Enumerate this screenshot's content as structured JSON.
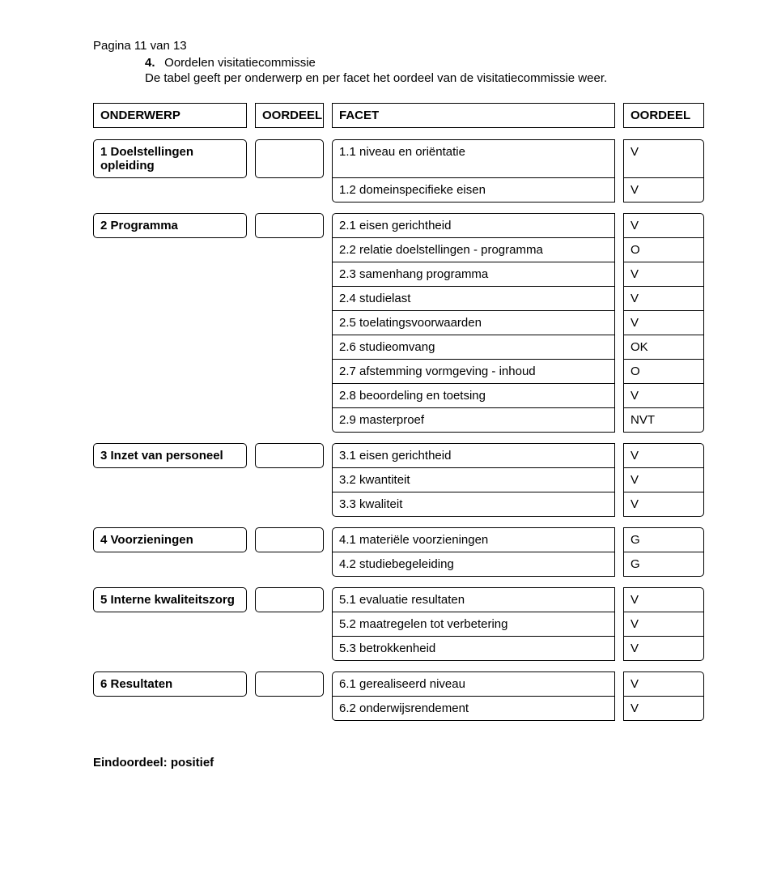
{
  "page_number_label": "Pagina 11 van 13",
  "section_number": "4.",
  "section_title": "Oordelen visitatiecommissie",
  "intro_text": "De tabel geeft per onderwerp en per facet het oordeel van de visitatiecommissie weer.",
  "header": {
    "onderwerp": "ONDERWERP",
    "oordeel_left": "OORDEEL",
    "facet": "FACET",
    "oordeel_right": "OORDEEL"
  },
  "groups": [
    {
      "subject": "1 Doelstellingen opleiding",
      "rows": [
        {
          "facet": "1.1 niveau en oriëntatie",
          "oordeel": "V"
        },
        {
          "facet": "1.2 domeinspecifieke eisen",
          "oordeel": "V"
        }
      ]
    },
    {
      "subject": "2 Programma",
      "rows": [
        {
          "facet": "2.1 eisen gerichtheid",
          "oordeel": "V"
        },
        {
          "facet": "2.2 relatie doelstellingen - programma",
          "oordeel": "O"
        },
        {
          "facet": "2.3 samenhang programma",
          "oordeel": "V"
        },
        {
          "facet": "2.4 studielast",
          "oordeel": "V"
        },
        {
          "facet": "2.5 toelatingsvoorwaarden",
          "oordeel": "V"
        },
        {
          "facet": "2.6 studieomvang",
          "oordeel": "OK"
        },
        {
          "facet": "2.7 afstemming vormgeving - inhoud",
          "oordeel": "O"
        },
        {
          "facet": "2.8 beoordeling en toetsing",
          "oordeel": "V"
        },
        {
          "facet": "2.9 masterproef",
          "oordeel": "NVT"
        }
      ]
    },
    {
      "subject": "3 Inzet van personeel",
      "rows": [
        {
          "facet": "3.1 eisen gerichtheid",
          "oordeel": "V"
        },
        {
          "facet": "3.2 kwantiteit",
          "oordeel": "V"
        },
        {
          "facet": "3.3 kwaliteit",
          "oordeel": "V"
        }
      ]
    },
    {
      "subject": "4 Voorzieningen",
      "rows": [
        {
          "facet": "4.1 materiële voorzieningen",
          "oordeel": "G"
        },
        {
          "facet": "4.2 studiebegeleiding",
          "oordeel": "G"
        }
      ]
    },
    {
      "subject": "5 Interne kwaliteitszorg",
      "rows": [
        {
          "facet": "5.1 evaluatie resultaten",
          "oordeel": "V"
        },
        {
          "facet": "5.2 maatregelen tot verbetering",
          "oordeel": "V"
        },
        {
          "facet": "5.3 betrokkenheid",
          "oordeel": "V"
        }
      ]
    },
    {
      "subject": "6 Resultaten",
      "rows": [
        {
          "facet": "6.1 gerealiseerd niveau",
          "oordeel": "V"
        },
        {
          "facet": "6.2 onderwijsrendement",
          "oordeel": "V"
        }
      ]
    }
  ],
  "eindoordeel_label": "Eindoordeel: positief"
}
